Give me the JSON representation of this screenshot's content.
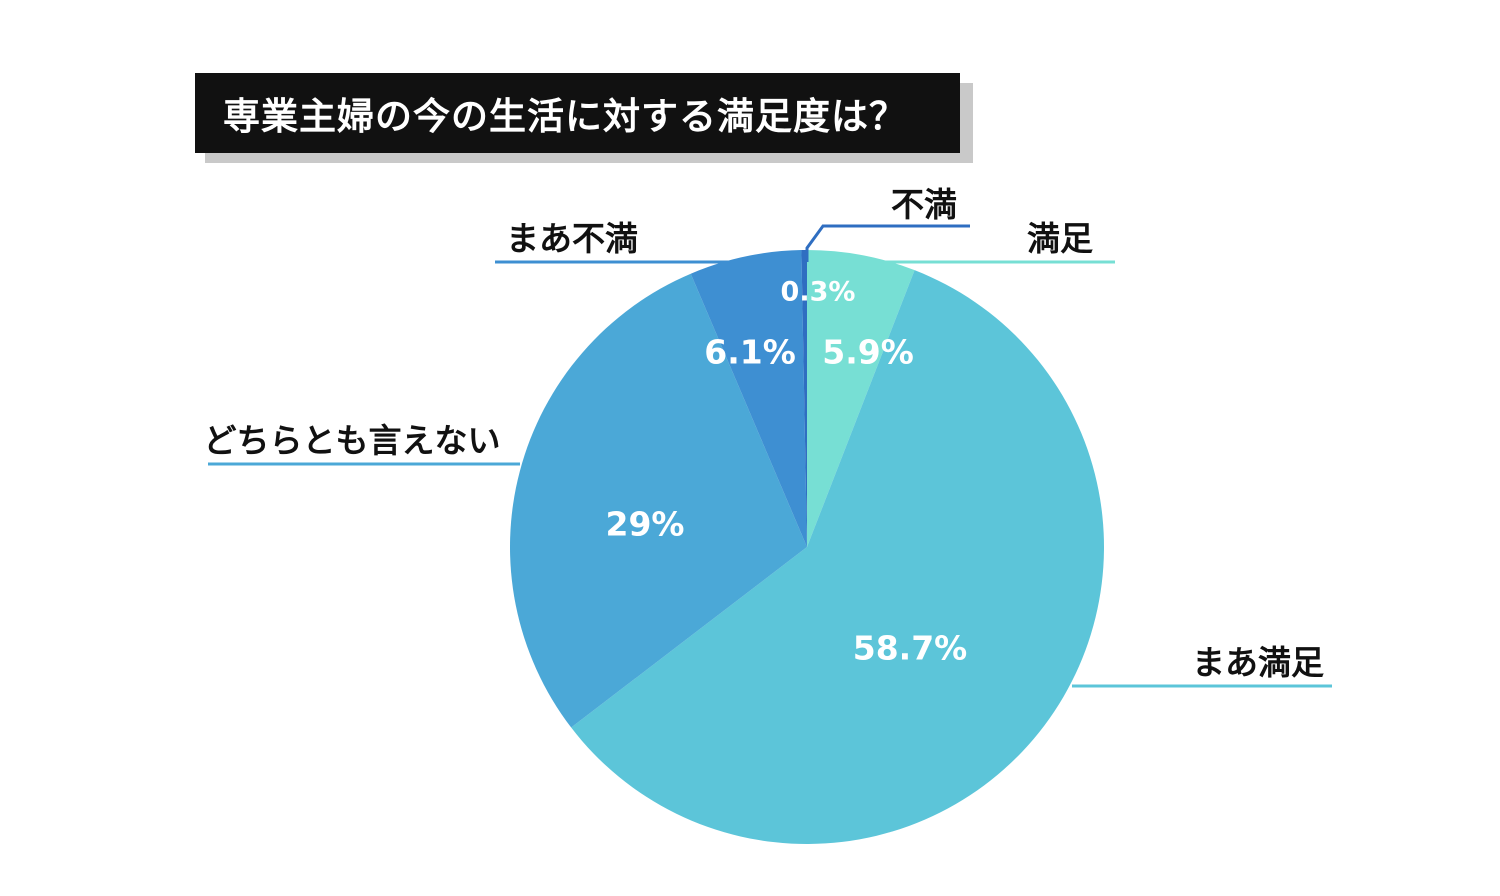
{
  "chart_data": {
    "type": "pie",
    "title": "専業主婦の今の生活に対する満足度は？",
    "start_angle": "12 o'clock, clockwise",
    "slices": [
      {
        "label": "満足",
        "value": 5.9,
        "value_label": "5.9%",
        "color": "#77dfd4"
      },
      {
        "label": "まあ満足",
        "value": 58.7,
        "value_label": "58.7%",
        "color": "#5cc5d9"
      },
      {
        "label": "どちらとも言えない",
        "value": 29,
        "value_label": "29%",
        "color": "#4ba8d7"
      },
      {
        "label": "まあ不満",
        "value": 6.1,
        "value_label": "6.1%",
        "color": "#3e8fd2"
      },
      {
        "label": "不満",
        "value": 0.3,
        "value_label": "0.3%",
        "color": "#2f6ec1"
      }
    ]
  }
}
